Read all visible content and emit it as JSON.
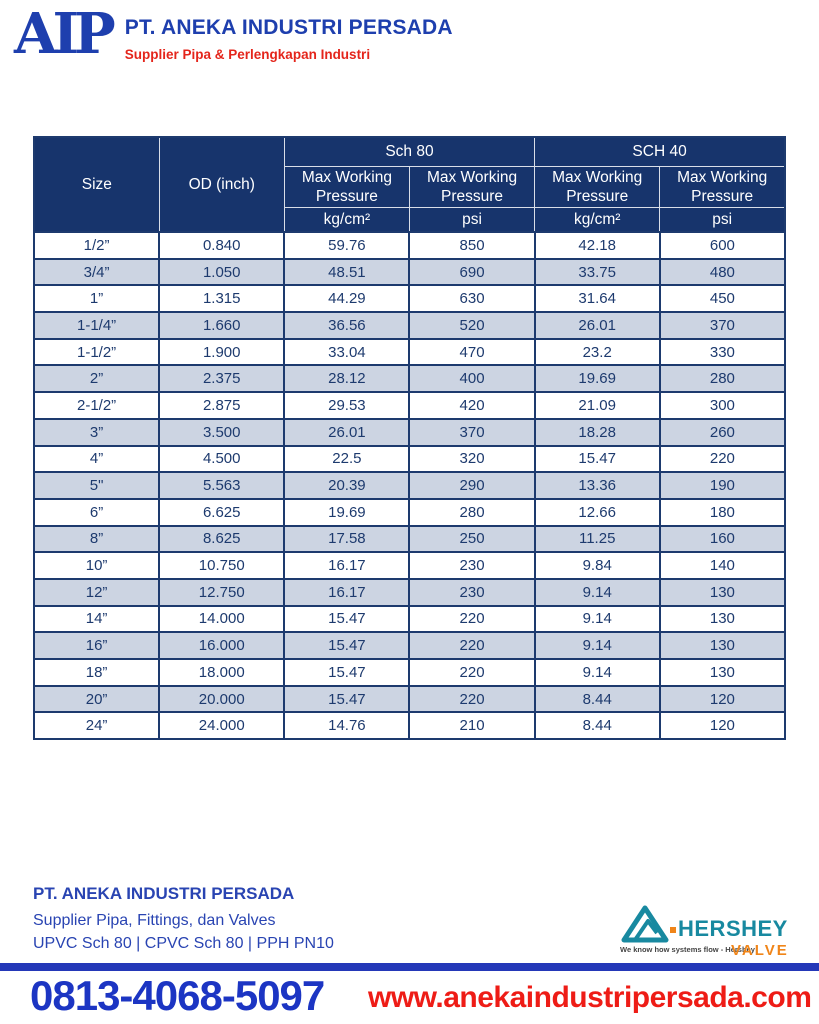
{
  "letterhead": {
    "logo_text": "AIP",
    "company_name": "PT. ANEKA INDUSTRI PERSADA",
    "tagline": "Supplier Pipa & Perlengkapan Industri"
  },
  "table": {
    "headers": {
      "size": "Size",
      "od": "OD (inch)",
      "group_sch80": "Sch 80",
      "group_sch40": "SCH 40",
      "subhead_line1": "Max Working",
      "subhead_line2": "Pressure",
      "unit_kgcm2": "kg/cm²",
      "unit_psi": "psi"
    },
    "rows": [
      [
        "1/2”",
        "0.840",
        "59.76",
        "850",
        "42.18",
        "600"
      ],
      [
        "3/4”",
        "1.050",
        "48.51",
        "690",
        "33.75",
        "480"
      ],
      [
        "1”",
        "1.315",
        "44.29",
        "630",
        "31.64",
        "450"
      ],
      [
        "1-1/4”",
        "1.660",
        "36.56",
        "520",
        "26.01",
        "370"
      ],
      [
        "1-1/2”",
        "1.900",
        "33.04",
        "470",
        "23.2",
        "330"
      ],
      [
        "2”",
        "2.375",
        "28.12",
        "400",
        "19.69",
        "280"
      ],
      [
        "2-1/2”",
        "2.875",
        "29.53",
        "420",
        "21.09",
        "300"
      ],
      [
        "3”",
        "3.500",
        "26.01",
        "370",
        "18.28",
        "260"
      ],
      [
        "4”",
        "4.500",
        "22.5",
        "320",
        "15.47",
        "220"
      ],
      [
        "5\"",
        "5.563",
        "20.39",
        "290",
        "13.36",
        "190"
      ],
      [
        "6”",
        "6.625",
        "19.69",
        "280",
        "12.66",
        "180"
      ],
      [
        "8”",
        "8.625",
        "17.58",
        "250",
        "11.25",
        "160"
      ],
      [
        "10”",
        "10.750",
        "16.17",
        "230",
        "9.84",
        "140"
      ],
      [
        "12”",
        "12.750",
        "16.17",
        "230",
        "9.14",
        "130"
      ],
      [
        "14”",
        "14.000",
        "15.47",
        "220",
        "9.14",
        "130"
      ],
      [
        "16”",
        "16.000",
        "15.47",
        "220",
        "9.14",
        "130"
      ],
      [
        "18”",
        "18.000",
        "15.47",
        "220",
        "9.14",
        "130"
      ],
      [
        "20”",
        "20.000",
        "15.47",
        "220",
        "8.44",
        "120"
      ],
      [
        "24”",
        "24.000",
        "14.76",
        "210",
        "8.44",
        "120"
      ]
    ]
  },
  "footer": {
    "company_name": "PT. ANEKA INDUSTRI PERSADA",
    "line1": "Supplier Pipa, Fittings, dan Valves",
    "line2": "UPVC Sch 80 | CPVC Sch 80 | PPH PN10",
    "phone": "0813-4068-5097",
    "website": "www.anekaindustripersada.com",
    "partner_logo": {
      "brand": "HERSHEY",
      "sub_brand": "VALVE",
      "tagline": "We know how systems flow - Hershey"
    }
  },
  "colors": {
    "header_navy": "#17346c",
    "row_shade": "#ccd4e2",
    "table_ink": "#1d3a6e",
    "brand_blue": "#1e3fae",
    "brand_red": "#e4251b",
    "phone_blue": "#1c35c3",
    "website_red": "#ee1c16",
    "divider_blue": "#2438b8",
    "hershey_teal": "#1889a0",
    "hershey_orange": "#f08519"
  }
}
